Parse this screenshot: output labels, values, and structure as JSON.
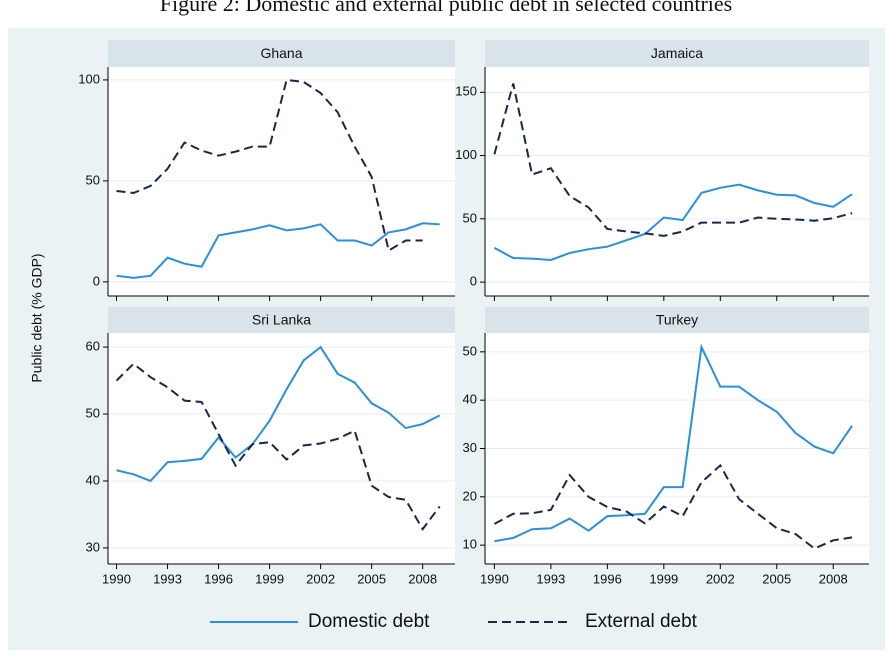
{
  "title": "Figure 2: Domestic and external public debt in selected countries",
  "ylabel": "Public debt (% GDP)",
  "legend": [
    {
      "name": "Domestic debt",
      "color": "#2a8fe0",
      "dash": false
    },
    {
      "name": "External debt",
      "color": "#1a2747",
      "dash": true
    }
  ],
  "chart_data": [
    {
      "type": "line",
      "title": "Ghana",
      "x": [
        1990,
        1991,
        1992,
        1993,
        1994,
        1995,
        1996,
        1997,
        1998,
        1999,
        2000,
        2001,
        2002,
        2003,
        2004,
        2005,
        2006,
        2007,
        2008,
        2009
      ],
      "xlim": [
        1989.5,
        2009.9
      ],
      "xticks": [
        1990,
        1993,
        1996,
        1999,
        2002,
        2005,
        2008
      ],
      "ylim": [
        -7,
        106.4
      ],
      "yticks": [
        0,
        50,
        100
      ],
      "grid": true,
      "series": [
        {
          "color": "#2a8fe0",
          "dash": false,
          "values": [
            3,
            2,
            3,
            12,
            9,
            7.5,
            23,
            24.5,
            26,
            28,
            25.5,
            26.5,
            28.5,
            20.5,
            20.5,
            18,
            24.5,
            26,
            29,
            28.5
          ]
        },
        {
          "color": "#1a2747",
          "dash": true,
          "values": [
            45,
            44,
            47.5,
            56,
            69,
            65,
            62.5,
            64.5,
            67,
            67,
            100,
            99,
            93.5,
            84,
            67,
            52,
            15.5,
            20.5,
            20.5,
            null
          ]
        }
      ]
    },
    {
      "type": "line",
      "title": "Jamaica",
      "x": [
        1990,
        1991,
        1992,
        1993,
        1994,
        1995,
        1996,
        1997,
        1998,
        1999,
        2000,
        2001,
        2002,
        2003,
        2004,
        2005,
        2006,
        2007,
        2008,
        2009
      ],
      "xlim": [
        1989.5,
        2009.9
      ],
      "xticks": [
        1990,
        1993,
        1996,
        1999,
        2002,
        2005,
        2008
      ],
      "ylim": [
        -11,
        170
      ],
      "yticks": [
        0,
        50,
        100,
        150
      ],
      "grid": true,
      "series": [
        {
          "color": "#2a8fe0",
          "dash": false,
          "values": [
            27,
            19,
            18.5,
            17.5,
            23,
            26,
            28,
            33,
            38,
            51,
            49,
            70.5,
            74.5,
            77,
            72.5,
            69,
            68.5,
            62.5,
            59.5,
            69.5
          ]
        },
        {
          "color": "#1a2747",
          "dash": true,
          "values": [
            101,
            157,
            85,
            90,
            68,
            59,
            42,
            40,
            38.5,
            36.5,
            40,
            47,
            47,
            47,
            51,
            50,
            49.5,
            48.5,
            50.5,
            54.5
          ]
        }
      ]
    },
    {
      "type": "line",
      "title": "Sri Lanka",
      "x": [
        1990,
        1991,
        1992,
        1993,
        1994,
        1995,
        1996,
        1997,
        1998,
        1999,
        2000,
        2001,
        2002,
        2003,
        2004,
        2005,
        2006,
        2007,
        2008,
        2009
      ],
      "xlim": [
        1989.5,
        2009.9
      ],
      "xticks": [
        1990,
        1993,
        1996,
        1999,
        2002,
        2005,
        2008
      ],
      "ylim": [
        27.6,
        62.1
      ],
      "yticks": [
        30,
        40,
        50,
        60
      ],
      "grid": true,
      "series": [
        {
          "color": "#2a8fe0",
          "dash": false,
          "values": [
            41.6,
            41,
            40,
            42.8,
            43,
            43.3,
            46.5,
            43.5,
            45.5,
            49,
            53.7,
            58,
            60,
            56,
            54.7,
            51.6,
            50.2,
            47.9,
            48.5,
            49.8
          ]
        },
        {
          "color": "#1a2747",
          "dash": true,
          "values": [
            55,
            57.5,
            55.5,
            54,
            52,
            51.8,
            47,
            42.3,
            45.5,
            45.8,
            43.2,
            45.3,
            45.6,
            46.3,
            47.5,
            39.3,
            37.6,
            37.2,
            32.8,
            36.2
          ]
        }
      ]
    },
    {
      "type": "line",
      "title": "Turkey",
      "x": [
        1990,
        1991,
        1992,
        1993,
        1994,
        1995,
        1996,
        1997,
        1998,
        1999,
        2000,
        2001,
        2002,
        2003,
        2004,
        2005,
        2006,
        2007,
        2008,
        2009
      ],
      "xlim": [
        1989.5,
        2009.9
      ],
      "xticks": [
        1990,
        1993,
        1996,
        1999,
        2002,
        2005,
        2008
      ],
      "ylim": [
        6.1,
        53.9
      ],
      "yticks": [
        10,
        20,
        30,
        40,
        50
      ],
      "grid": true,
      "series": [
        {
          "color": "#2a8fe0",
          "dash": false,
          "values": [
            10.8,
            11.5,
            13.3,
            13.5,
            15.5,
            13,
            16,
            16.2,
            16.5,
            22,
            22,
            51,
            42.8,
            42.8,
            40,
            37.6,
            33.2,
            30.4,
            29,
            34.7
          ]
        },
        {
          "color": "#1a2747",
          "dash": true,
          "values": [
            14.4,
            16.5,
            16.6,
            17.3,
            24.5,
            20,
            17.9,
            17,
            14.5,
            18,
            16,
            23,
            26.5,
            19.5,
            16.5,
            13.5,
            12.3,
            9.3,
            11,
            11.6
          ]
        }
      ]
    }
  ]
}
